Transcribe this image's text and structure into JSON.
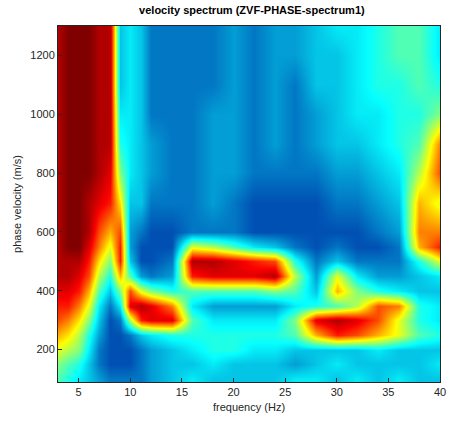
{
  "chart_data": {
    "type": "heatmap",
    "title": "velocity spectrum (ZVF-PHASE-spectrum1)",
    "xlabel": "frequency (Hz)",
    "ylabel": "phase velocity (m/s)",
    "x": [
      3,
      4,
      5,
      6,
      7,
      8,
      9,
      10,
      11,
      12,
      14,
      16,
      18,
      20,
      22,
      24,
      26,
      28,
      30,
      32,
      34,
      36,
      38,
      40
    ],
    "y": [
      100,
      150,
      200,
      250,
      300,
      350,
      400,
      450,
      500,
      550,
      600,
      700,
      800,
      900,
      1000,
      1100,
      1200,
      1300
    ],
    "values": [
      [
        0.45,
        0.4,
        0.35,
        0.3,
        0.25,
        0.2,
        0.2,
        0.2,
        0.2,
        0.25,
        0.3,
        0.35,
        0.3,
        0.3,
        0.3,
        0.3,
        0.35,
        0.35,
        0.3,
        0.35,
        0.3,
        0.35,
        0.3,
        0.3
      ],
      [
        0.5,
        0.45,
        0.4,
        0.3,
        0.2,
        0.15,
        0.15,
        0.15,
        0.2,
        0.25,
        0.3,
        0.3,
        0.35,
        0.3,
        0.3,
        0.3,
        0.25,
        0.3,
        0.35,
        0.3,
        0.3,
        0.3,
        0.3,
        0.35
      ],
      [
        0.6,
        0.55,
        0.5,
        0.35,
        0.2,
        0.15,
        0.15,
        0.15,
        0.2,
        0.25,
        0.3,
        0.35,
        0.4,
        0.4,
        0.35,
        0.35,
        0.3,
        0.3,
        0.3,
        0.3,
        0.35,
        0.3,
        0.3,
        0.3
      ],
      [
        0.7,
        0.65,
        0.55,
        0.4,
        0.25,
        0.15,
        0.15,
        0.2,
        0.3,
        0.35,
        0.4,
        0.4,
        0.4,
        0.4,
        0.4,
        0.4,
        0.45,
        0.7,
        0.85,
        0.8,
        0.7,
        0.6,
        0.45,
        0.4
      ],
      [
        0.8,
        0.75,
        0.65,
        0.5,
        0.3,
        0.15,
        0.2,
        0.55,
        0.85,
        0.9,
        0.9,
        0.45,
        0.35,
        0.35,
        0.35,
        0.35,
        0.5,
        0.9,
        0.95,
        0.9,
        0.8,
        0.6,
        0.4,
        0.35
      ],
      [
        0.85,
        0.85,
        0.75,
        0.6,
        0.35,
        0.2,
        0.35,
        0.9,
        0.95,
        0.9,
        0.75,
        0.35,
        0.25,
        0.25,
        0.25,
        0.25,
        0.35,
        0.4,
        0.45,
        0.55,
        0.8,
        0.75,
        0.4,
        0.35
      ],
      [
        0.9,
        0.9,
        0.85,
        0.7,
        0.45,
        0.3,
        0.5,
        0.8,
        0.6,
        0.5,
        0.4,
        0.45,
        0.45,
        0.45,
        0.45,
        0.5,
        0.45,
        0.3,
        0.7,
        0.5,
        0.4,
        0.35,
        0.3,
        0.3
      ],
      [
        0.95,
        0.95,
        0.9,
        0.8,
        0.55,
        0.4,
        0.7,
        0.45,
        0.25,
        0.2,
        0.25,
        0.85,
        0.9,
        0.9,
        0.9,
        0.95,
        0.55,
        0.25,
        0.6,
        0.35,
        0.25,
        0.25,
        0.3,
        0.35
      ],
      [
        0.95,
        0.95,
        0.95,
        0.85,
        0.65,
        0.5,
        0.85,
        0.3,
        0.15,
        0.15,
        0.2,
        0.95,
        0.95,
        0.9,
        0.85,
        0.8,
        0.4,
        0.2,
        0.3,
        0.2,
        0.2,
        0.2,
        0.4,
        0.6
      ],
      [
        0.95,
        1,
        1,
        0.9,
        0.75,
        0.6,
        0.85,
        0.25,
        0.15,
        0.15,
        0.15,
        0.6,
        0.55,
        0.45,
        0.35,
        0.3,
        0.2,
        0.15,
        0.2,
        0.15,
        0.15,
        0.2,
        0.7,
        0.85
      ],
      [
        0.95,
        1,
        1,
        0.95,
        0.8,
        0.7,
        0.8,
        0.25,
        0.2,
        0.15,
        0.15,
        0.2,
        0.2,
        0.2,
        0.15,
        0.15,
        0.15,
        0.15,
        0.15,
        0.15,
        0.2,
        0.25,
        0.75,
        0.75
      ],
      [
        0.95,
        1,
        1,
        0.95,
        0.9,
        0.85,
        0.65,
        0.3,
        0.3,
        0.2,
        0.2,
        0.2,
        0.25,
        0.2,
        0.15,
        0.15,
        0.15,
        0.15,
        0.2,
        0.2,
        0.25,
        0.3,
        0.7,
        0.6
      ],
      [
        0.95,
        1,
        1,
        1,
        0.95,
        0.9,
        0.5,
        0.35,
        0.3,
        0.25,
        0.2,
        0.2,
        0.25,
        0.25,
        0.2,
        0.2,
        0.2,
        0.2,
        0.25,
        0.25,
        0.3,
        0.35,
        0.55,
        0.8
      ],
      [
        0.95,
        1,
        1,
        1,
        0.95,
        0.95,
        0.4,
        0.35,
        0.3,
        0.25,
        0.2,
        0.2,
        0.25,
        0.25,
        0.2,
        0.25,
        0.2,
        0.25,
        0.3,
        0.3,
        0.35,
        0.4,
        0.45,
        0.75
      ],
      [
        0.95,
        1,
        1,
        1,
        0.95,
        0.95,
        0.35,
        0.35,
        0.3,
        0.2,
        0.2,
        0.2,
        0.25,
        0.25,
        0.2,
        0.25,
        0.2,
        0.25,
        0.3,
        0.35,
        0.35,
        0.4,
        0.4,
        0.5
      ],
      [
        0.95,
        1,
        1,
        1,
        0.95,
        0.95,
        0.3,
        0.35,
        0.3,
        0.2,
        0.2,
        0.2,
        0.2,
        0.25,
        0.2,
        0.25,
        0.2,
        0.3,
        0.3,
        0.35,
        0.4,
        0.4,
        0.45,
        0.4
      ],
      [
        0.95,
        1,
        1,
        1,
        0.95,
        0.95,
        0.3,
        0.35,
        0.3,
        0.2,
        0.2,
        0.2,
        0.2,
        0.25,
        0.2,
        0.25,
        0.25,
        0.3,
        0.3,
        0.35,
        0.4,
        0.45,
        0.45,
        0.35
      ],
      [
        0.95,
        1,
        1,
        1,
        0.95,
        0.95,
        0.3,
        0.35,
        0.3,
        0.2,
        0.2,
        0.2,
        0.2,
        0.25,
        0.2,
        0.25,
        0.25,
        0.3,
        0.35,
        0.35,
        0.4,
        0.45,
        0.45,
        0.35
      ]
    ],
    "zlim": [
      0,
      1
    ],
    "xlim": [
      3,
      40
    ],
    "ylim": [
      90,
      1300
    ],
    "xticks": [
      5,
      10,
      15,
      20,
      25,
      30,
      35,
      40
    ],
    "yticks": [
      200,
      400,
      600,
      800,
      1000,
      1200
    ],
    "grid": false
  }
}
